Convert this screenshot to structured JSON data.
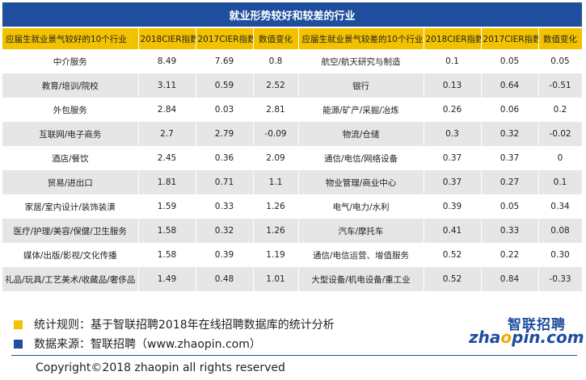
{
  "title": "就业形势较好和较差的行业",
  "headers": [
    "应届生就业景气较好的10个行业",
    "2018CIER指数",
    "2017CIER指数",
    "数值变化",
    "应届生就业景气较差的10个行业",
    "2018CIER指数",
    "2017CIER指数",
    "数值变化"
  ],
  "rows": [
    {
      "good": "中介服务",
      "g18": "8.49",
      "g17": "7.69",
      "gd": "0.8",
      "bad": "航空/航天研究与制造",
      "b18": "0.1",
      "b17": "0.05",
      "bd": "0.05"
    },
    {
      "good": "教育/培训/院校",
      "g18": "3.11",
      "g17": "0.59",
      "gd": "2.52",
      "bad": "银行",
      "b18": "0.13",
      "b17": "0.64",
      "bd": "-0.51"
    },
    {
      "good": "外包服务",
      "g18": "2.84",
      "g17": "0.03",
      "gd": "2.81",
      "bad": "能源/矿产/采掘/冶炼",
      "b18": "0.26",
      "b17": "0.06",
      "bd": "0.2"
    },
    {
      "good": "互联网/电子商务",
      "g18": "2.7",
      "g17": "2.79",
      "gd": "-0.09",
      "bad": "物流/仓储",
      "b18": "0.3",
      "b17": "0.32",
      "bd": "-0.02"
    },
    {
      "good": "酒店/餐饮",
      "g18": "2.45",
      "g17": "0.36",
      "gd": "2.09",
      "bad": "通信/电信/网络设备",
      "b18": "0.37",
      "b17": "0.37",
      "bd": "0"
    },
    {
      "good": "贸易/进出口",
      "g18": "1.81",
      "g17": "0.71",
      "gd": "1.1",
      "bad": "物业管理/商业中心",
      "b18": "0.37",
      "b17": "0.27",
      "bd": "0.1"
    },
    {
      "good": "家居/室内设计/装饰装潢",
      "g18": "1.59",
      "g17": "0.33",
      "gd": "1.26",
      "bad": "电气/电力/水利",
      "b18": "0.39",
      "b17": "0.05",
      "bd": "0.34"
    },
    {
      "good": "医疗/护理/美容/保健/卫生服务",
      "g18": "1.58",
      "g17": "0.32",
      "gd": "1.26",
      "bad": "汽车/摩托车",
      "b18": "0.41",
      "b17": "0.33",
      "bd": "0.08"
    },
    {
      "good": "媒体/出版/影视/文化传播",
      "g18": "1.58",
      "g17": "0.39",
      "gd": "1.19",
      "bad": "通信/电信运营、增值服务",
      "b18": "0.52",
      "b17": "0.22",
      "bd": "0.30"
    },
    {
      "good": "礼品/玩具/工艺美术/收藏品/奢侈品",
      "g18": "1.49",
      "g17": "0.48",
      "gd": "1.01",
      "bad": "大型设备/机电设备/重工业",
      "b18": "0.52",
      "b17": "0.84",
      "bd": "-0.33"
    }
  ],
  "footer": {
    "rule_text": "统计规则：基于智联招聘2018年在线招聘数据库的统计分析",
    "source_text": "数据来源：智联招聘（www.zhaopin.com）",
    "copyright": "Copyright©2018 zhaopin all rights reserved",
    "logo_cn": "智联招聘",
    "logo_en_a": "zha",
    "logo_en_b": "o",
    "logo_en_c": "pin.com"
  },
  "colors": {
    "title_bg": "#1f4e9e",
    "header_bg": "#f2c200",
    "stripe": "#e6e6e6"
  }
}
